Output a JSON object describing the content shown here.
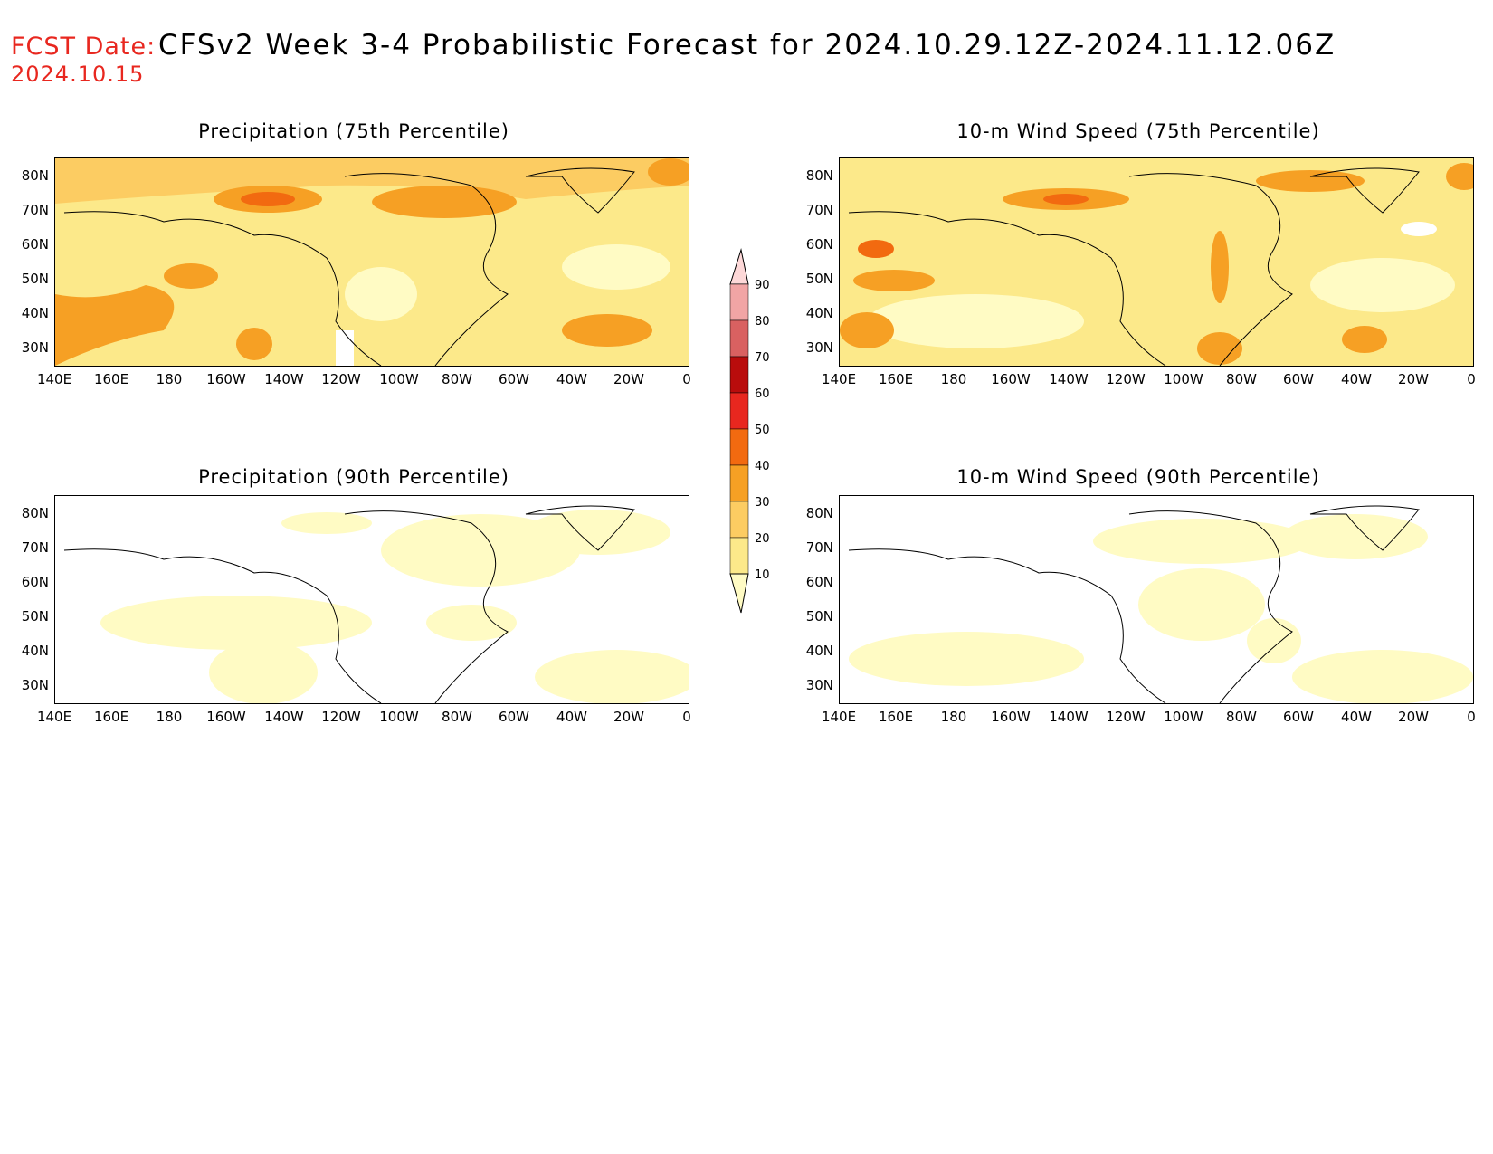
{
  "header": {
    "fcst_label": "FCST Date:",
    "fcst_date": "2024.10.15",
    "title": "CFSv2 Week 3-4 Probabilistic Forecast for 2024.10.29.12Z-2024.11.12.06Z"
  },
  "panels": [
    {
      "id": "precip75",
      "title": "Precipitation (75th Percentile)"
    },
    {
      "id": "wind75",
      "title": "10-m Wind Speed (75th Percentile)"
    },
    {
      "id": "precip90",
      "title": "Precipitation (90th Percentile)"
    },
    {
      "id": "wind90",
      "title": "10-m Wind Speed (90th Percentile)"
    }
  ],
  "lat_labels": [
    "80N",
    "70N",
    "60N",
    "50N",
    "40N",
    "30N"
  ],
  "lon_labels": [
    "140E",
    "160E",
    "180",
    "160W",
    "140W",
    "120W",
    "100W",
    "80W",
    "60W",
    "40W",
    "20W",
    "0"
  ],
  "colorbar": {
    "levels": [
      "10",
      "20",
      "30",
      "40",
      "50",
      "60",
      "70",
      "80",
      "90"
    ],
    "colors": [
      "#fffbc4",
      "#fce98a",
      "#fccc62",
      "#f6a024",
      "#f26a10",
      "#e8271f",
      "#b90c0c",
      "#d96161",
      "#f1a5a5",
      "#fdd8d8"
    ]
  }
}
